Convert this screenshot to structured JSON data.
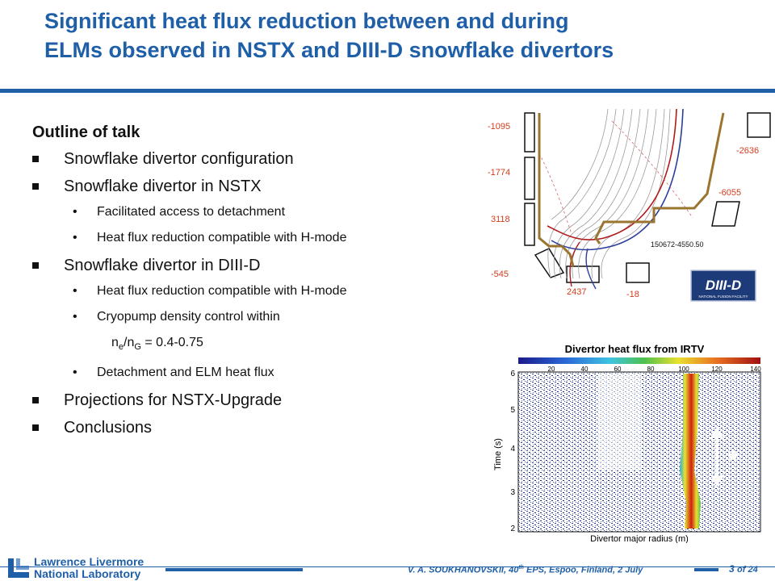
{
  "title": {
    "line1": "Significant heat flux reduction between and during",
    "line2": "ELMs observed in NSTX and DIII-D snowflake divertors"
  },
  "outline": {
    "heading": "Outline of talk",
    "item1": "Snowflake divertor configuration",
    "item2": "Snowflake divertor in NSTX",
    "item2_sub1": "Facilitated access to detachment",
    "item2_sub2": "Heat flux reduction compatible with H-mode",
    "item3": "Snowflake divertor in DIII-D",
    "item3_sub1": "Heat flux reduction compatible with H-mode",
    "item3_sub2": "Cryopump density control within",
    "item3_sub2_ne": "n",
    "item3_sub2_e": "e",
    "item3_sub2_slash": "/n",
    "item3_sub2_G": "G",
    "item3_sub2_value": " = 0.4-0.75",
    "item3_sub3": "Detachment and ELM heat flux",
    "item4": "Projections for NSTX-Upgrade",
    "item5": "Conclusions",
    "bullet_dot": "•"
  },
  "figure_top": {
    "coil_labels": [
      "-1095",
      "-1774",
      "3118",
      "-545",
      "2437",
      "-18",
      "-2636",
      "-6055"
    ],
    "shot_label": "150672-4550.50",
    "logo_text": "DIII-D",
    "logo_subtext": "NATIONAL FUSION FACILITY"
  },
  "figure_bottom": {
    "title": "Divertor heat flux from IRTV",
    "colorbar_ticks": [
      "20",
      "40",
      "60",
      "80",
      "100",
      "120",
      "140"
    ],
    "ylabel": "Time (s)",
    "xlabel": "Divertor major radius (m)",
    "yticks": [
      "2",
      "3",
      "4",
      "5",
      "6"
    ],
    "annotation": "*"
  },
  "footer": {
    "lab_line1": "Lawrence Livermore",
    "lab_line2": "National Laboratory",
    "author_pre": "V. A. SOUKHANOVSKII, 40",
    "author_sup": "th",
    "author_post": " EPS, Espoo, Finland, 2 July",
    "page": "3",
    "of_total": "of 24"
  },
  "colors": {
    "accent": "#1f5fa8",
    "red_label": "#d23c1e",
    "wall": "#9a7530"
  }
}
